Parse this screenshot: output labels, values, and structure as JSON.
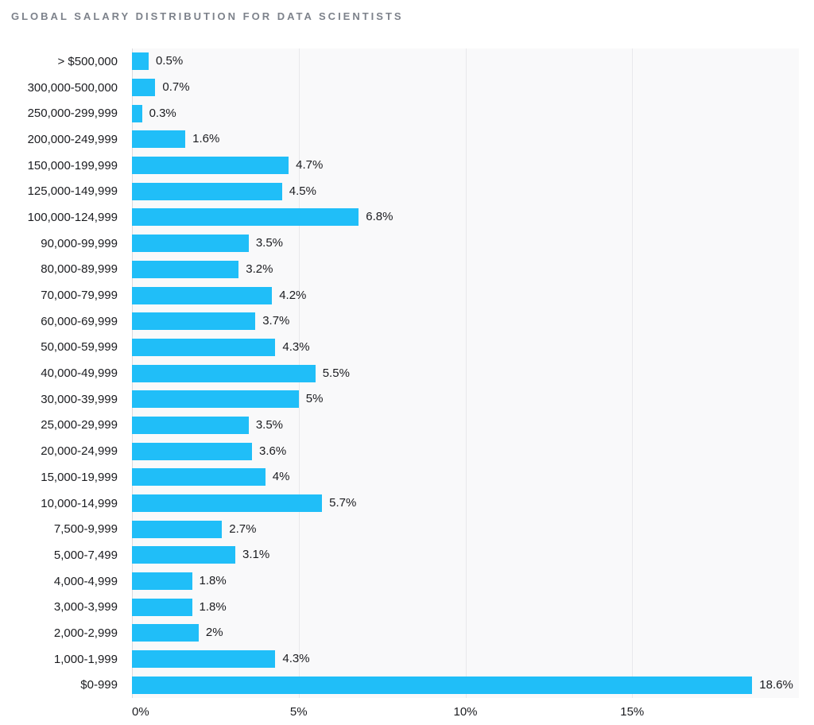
{
  "title": "GLOBAL SALARY DISTRIBUTION FOR DATA SCIENTISTS",
  "colors": {
    "bg": "#ffffff",
    "bar": "#20bef8",
    "plotbg": "#f9f9fa",
    "grid": "#e8e8eb",
    "axis": "#dadade",
    "title": "#7d828b",
    "text": "#1b1c20"
  },
  "chart_data": {
    "type": "bar",
    "orientation": "horizontal",
    "title": "GLOBAL SALARY DISTRIBUTION FOR DATA SCIENTISTS",
    "xlabel": "",
    "ylabel": "",
    "xlim": [
      0,
      20
    ],
    "grid": "vertical",
    "legend": "none",
    "x_ticks": [
      {
        "value": 0,
        "label": "0%"
      },
      {
        "value": 5,
        "label": "5%"
      },
      {
        "value": 10,
        "label": "10%"
      },
      {
        "value": 15,
        "label": "15%"
      }
    ],
    "rows": [
      {
        "category": "> $500,000",
        "value": 0.5,
        "label": "0.5%"
      },
      {
        "category": "300,000-500,000",
        "value": 0.7,
        "label": "0.7%"
      },
      {
        "category": "250,000-299,999",
        "value": 0.3,
        "label": "0.3%"
      },
      {
        "category": "200,000-249,999",
        "value": 1.6,
        "label": "1.6%"
      },
      {
        "category": "150,000-199,999",
        "value": 4.7,
        "label": "4.7%"
      },
      {
        "category": "125,000-149,999",
        "value": 4.5,
        "label": "4.5%"
      },
      {
        "category": "100,000-124,999",
        "value": 6.8,
        "label": "6.8%"
      },
      {
        "category": "90,000-99,999",
        "value": 3.5,
        "label": "3.5%"
      },
      {
        "category": "80,000-89,999",
        "value": 3.2,
        "label": "3.2%"
      },
      {
        "category": "70,000-79,999",
        "value": 4.2,
        "label": "4.2%"
      },
      {
        "category": "60,000-69,999",
        "value": 3.7,
        "label": "3.7%"
      },
      {
        "category": "50,000-59,999",
        "value": 4.3,
        "label": "4.3%"
      },
      {
        "category": "40,000-49,999",
        "value": 5.5,
        "label": "5.5%"
      },
      {
        "category": "30,000-39,999",
        "value": 5,
        "label": "5%"
      },
      {
        "category": "25,000-29,999",
        "value": 3.5,
        "label": "3.5%"
      },
      {
        "category": "20,000-24,999",
        "value": 3.6,
        "label": "3.6%"
      },
      {
        "category": "15,000-19,999",
        "value": 4,
        "label": "4%"
      },
      {
        "category": "10,000-14,999",
        "value": 5.7,
        "label": "5.7%"
      },
      {
        "category": "7,500-9,999",
        "value": 2.7,
        "label": "2.7%"
      },
      {
        "category": "5,000-7,499",
        "value": 3.1,
        "label": "3.1%"
      },
      {
        "category": "4,000-4,999",
        "value": 1.8,
        "label": "1.8%"
      },
      {
        "category": "3,000-3,999",
        "value": 1.8,
        "label": "1.8%"
      },
      {
        "category": "2,000-2,999",
        "value": 2,
        "label": "2%"
      },
      {
        "category": "1,000-1,999",
        "value": 4.3,
        "label": "4.3%"
      },
      {
        "category": "$0-999",
        "value": 18.6,
        "label": "18.6%"
      }
    ]
  }
}
